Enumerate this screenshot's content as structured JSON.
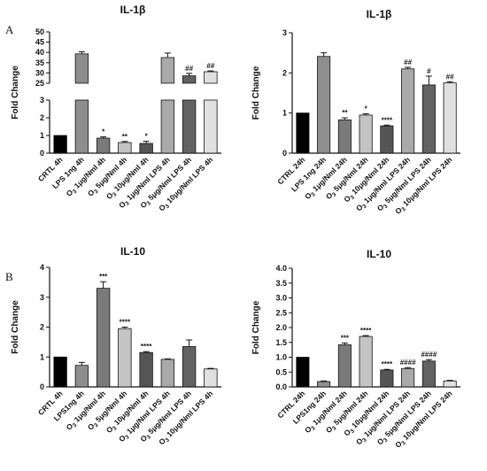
{
  "panel_labels": [
    "A",
    "B"
  ],
  "chart_data": [
    {
      "type": "bar",
      "title": "IL-1β",
      "ylabel": "Fold Change",
      "xlabel": "",
      "y_axis": "broken",
      "y_segments": [
        [
          0,
          3
        ],
        [
          25,
          50
        ]
      ],
      "yticks": [
        0,
        1,
        2,
        3,
        25,
        30,
        35,
        40,
        45,
        50
      ],
      "categories": [
        "CRTL 4h",
        "LPS 1ng 4h",
        "O3 1μg/Nml 4h",
        "O3 5μg/Nml 4h",
        "O3 10μg/Nml 4h",
        "O3 1μg/Nml LPS 4h",
        "O3 5μg/Nml LPS 4h",
        "O3 10μg/Nml LPS 4h"
      ],
      "values": [
        1.0,
        39.3,
        0.85,
        0.6,
        0.55,
        37.5,
        28.6,
        30.6
      ],
      "errors": [
        0,
        1.0,
        0.07,
        0.06,
        0.12,
        2.2,
        1.2,
        0.4
      ],
      "annotations": [
        "",
        "",
        "*",
        "**",
        "*",
        "",
        "##",
        "##"
      ],
      "colors": [
        "#000000",
        "#8e8e8e",
        "#7a7a7a",
        "#c4c4c4",
        "#555555",
        "#a9a9a9",
        "#626262",
        "#e0e0e0"
      ]
    },
    {
      "type": "bar",
      "title": "IL-1β",
      "ylabel": "Fold Change",
      "xlabel": "",
      "ylim": [
        0,
        3
      ],
      "yticks": [
        0,
        1,
        2,
        3
      ],
      "categories": [
        "CTRL 24h",
        "LPS 1ng 24h",
        "O3 1μg/Nml 24h",
        "O3 5μg/Nml 24h",
        "O3 10μg/Nml 24h",
        "O3 1μg/Nml LPS 24h",
        "O3 5μg/Nml LPS 24h",
        "O3 10μg/Nml LPS 24h"
      ],
      "values": [
        1.0,
        2.41,
        0.83,
        0.95,
        0.68,
        2.1,
        1.7,
        1.75
      ],
      "errors": [
        0,
        0.09,
        0.05,
        0.03,
        0.02,
        0.04,
        0.22,
        0.03
      ],
      "annotations": [
        "",
        "",
        "**",
        "*",
        "****",
        "##",
        "#",
        "##"
      ],
      "colors": [
        "#000000",
        "#8e8e8e",
        "#7a7a7a",
        "#c4c4c4",
        "#555555",
        "#a9a9a9",
        "#626262",
        "#e0e0e0"
      ]
    },
    {
      "type": "bar",
      "title": "IL-10",
      "ylabel": "Fold Change",
      "xlabel": "",
      "ylim": [
        0,
        4
      ],
      "yticks": [
        0,
        1,
        2,
        3,
        4
      ],
      "categories": [
        "CRTL 4h",
        "LPS1ng 4h",
        "O3 1μg/Nml 4h",
        "O3 5μg/Nml 4h",
        "O3 10μg/Nml 4h",
        "O3 1μg/Nml LPS 4h",
        "O3 5μg/Nml LPS 4h",
        "O3 10μg/Nml LPS 4h"
      ],
      "values": [
        1.0,
        0.72,
        3.3,
        1.95,
        1.15,
        0.92,
        1.35,
        0.6
      ],
      "errors": [
        0,
        0.1,
        0.22,
        0.05,
        0.03,
        0.02,
        0.22,
        0.02
      ],
      "annotations": [
        "",
        "",
        "***",
        "****",
        "****",
        "",
        "",
        ""
      ],
      "colors": [
        "#000000",
        "#8e8e8e",
        "#7a7a7a",
        "#c4c4c4",
        "#555555",
        "#a9a9a9",
        "#626262",
        "#e0e0e0"
      ]
    },
    {
      "type": "bar",
      "title": "IL-10",
      "ylabel": "Fold Change",
      "xlabel": "",
      "ylim": [
        0,
        4
      ],
      "yticks": [
        0.0,
        0.5,
        1.0,
        1.5,
        2.0,
        2.5,
        3.0,
        3.5,
        4.0
      ],
      "categories": [
        "CTRL 24h",
        "LPS1ng 24h",
        "O3 1μg/Nml 24h",
        "O3 5μg/Nml 24h",
        "O3 10μg/Nml 24h",
        "O3 1μg/Nml LPS 24h",
        "O3 5μg/Nml LPS 24h",
        "O3 10μg/Nml LPS 24h"
      ],
      "values": [
        1.0,
        0.18,
        1.42,
        1.7,
        0.57,
        0.62,
        0.87,
        0.2
      ],
      "errors": [
        0,
        0.02,
        0.06,
        0.03,
        0.02,
        0.03,
        0.05,
        0.02
      ],
      "annotations": [
        "",
        "",
        "***",
        "****",
        "****",
        "####",
        "####",
        ""
      ],
      "colors": [
        "#000000",
        "#8e8e8e",
        "#7a7a7a",
        "#c4c4c4",
        "#555555",
        "#a9a9a9",
        "#626262",
        "#e0e0e0"
      ]
    }
  ]
}
